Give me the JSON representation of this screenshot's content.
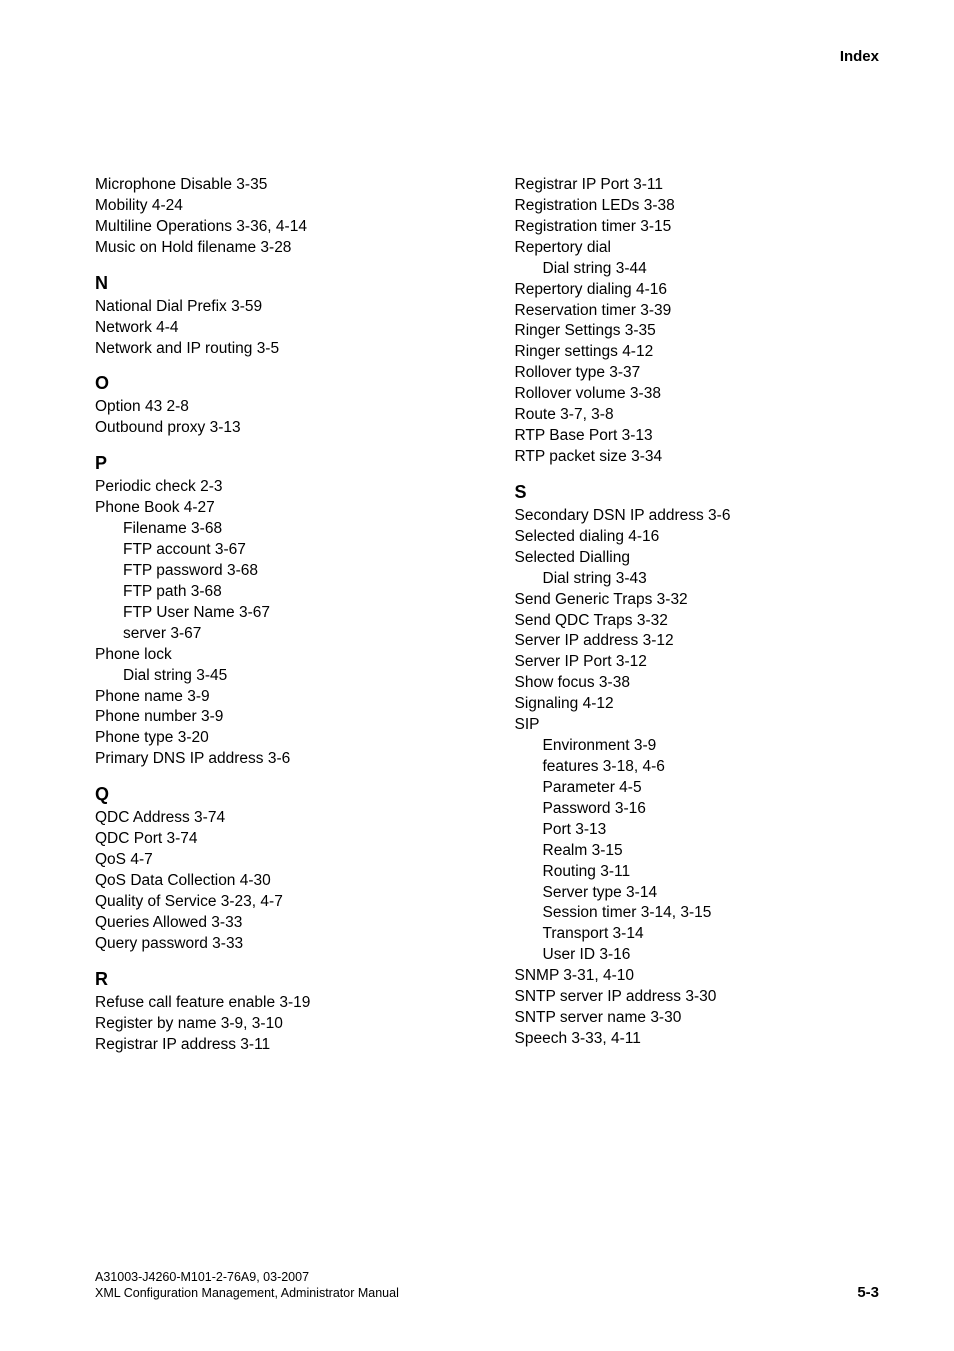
{
  "header": {
    "title": "Index"
  },
  "leftColumn": {
    "topEntries": [
      {
        "text": "Microphone Disable  3-35",
        "indent": false
      },
      {
        "text": "Mobility  4-24",
        "indent": false
      },
      {
        "text": "Multiline Operations  3-36, 4-14",
        "indent": false
      },
      {
        "text": "Music on Hold filename  3-28",
        "indent": false
      }
    ],
    "sections": [
      {
        "heading": "N",
        "entries": [
          {
            "text": "National Dial Prefix  3-59",
            "indent": false
          },
          {
            "text": "Network  4-4",
            "indent": false
          },
          {
            "text": "Network and IP routing  3-5",
            "indent": false
          }
        ]
      },
      {
        "heading": "O",
        "entries": [
          {
            "text": "Option 43  2-8",
            "indent": false
          },
          {
            "text": "Outbound proxy  3-13",
            "indent": false
          }
        ]
      },
      {
        "heading": "P",
        "entries": [
          {
            "text": "Periodic check  2-3",
            "indent": false
          },
          {
            "text": "Phone Book  4-27",
            "indent": false
          },
          {
            "text": "Filename  3-68",
            "indent": true
          },
          {
            "text": "FTP account  3-67",
            "indent": true
          },
          {
            "text": "FTP password  3-68",
            "indent": true
          },
          {
            "text": "FTP path  3-68",
            "indent": true
          },
          {
            "text": "FTP User Name  3-67",
            "indent": true
          },
          {
            "text": "server  3-67",
            "indent": true
          },
          {
            "text": "Phone lock",
            "indent": false
          },
          {
            "text": "Dial string  3-45",
            "indent": true
          },
          {
            "text": "Phone name  3-9",
            "indent": false
          },
          {
            "text": "Phone number  3-9",
            "indent": false
          },
          {
            "text": "Phone type  3-20",
            "indent": false
          },
          {
            "text": "Primary DNS IP address  3-6",
            "indent": false
          }
        ]
      },
      {
        "heading": "Q",
        "entries": [
          {
            "text": "QDC Address  3-74",
            "indent": false
          },
          {
            "text": "QDC Port  3-74",
            "indent": false
          },
          {
            "text": "QoS  4-7",
            "indent": false
          },
          {
            "text": "QoS Data Collection  4-30",
            "indent": false
          },
          {
            "text": "Quality of Service  3-23, 4-7",
            "indent": false
          },
          {
            "text": "Queries Allowed  3-33",
            "indent": false
          },
          {
            "text": "Query password  3-33",
            "indent": false
          }
        ]
      },
      {
        "heading": "R",
        "entries": [
          {
            "text": "Refuse call feature enable  3-19",
            "indent": false
          },
          {
            "text": "Register by name  3-9, 3-10",
            "indent": false
          },
          {
            "text": "Registrar IP address  3-11",
            "indent": false
          }
        ]
      }
    ]
  },
  "rightColumn": {
    "topEntries": [
      {
        "text": "Registrar IP Port  3-11",
        "indent": false
      },
      {
        "text": "Registration LEDs  3-38",
        "indent": false
      },
      {
        "text": "Registration timer  3-15",
        "indent": false
      },
      {
        "text": "Repertory dial",
        "indent": false
      },
      {
        "text": "Dial string  3-44",
        "indent": true
      },
      {
        "text": "Repertory dialing  4-16",
        "indent": false
      },
      {
        "text": "Reservation timer  3-39",
        "indent": false
      },
      {
        "text": "Ringer Settings  3-35",
        "indent": false
      },
      {
        "text": "Ringer settings  4-12",
        "indent": false
      },
      {
        "text": "Rollover type  3-37",
        "indent": false
      },
      {
        "text": "Rollover volume  3-38",
        "indent": false
      },
      {
        "text": "Route  3-7, 3-8",
        "indent": false
      },
      {
        "text": "RTP Base Port  3-13",
        "indent": false
      },
      {
        "text": "RTP packet size  3-34",
        "indent": false
      }
    ],
    "sections": [
      {
        "heading": "S",
        "entries": [
          {
            "text": "Secondary DSN IP address  3-6",
            "indent": false
          },
          {
            "text": "Selected dialing  4-16",
            "indent": false
          },
          {
            "text": "Selected Dialling",
            "indent": false
          },
          {
            "text": "Dial string  3-43",
            "indent": true
          },
          {
            "text": "Send Generic Traps  3-32",
            "indent": false
          },
          {
            "text": "Send QDC Traps  3-32",
            "indent": false
          },
          {
            "text": "Server IP address  3-12",
            "indent": false
          },
          {
            "text": "Server IP Port  3-12",
            "indent": false
          },
          {
            "text": "Show focus  3-38",
            "indent": false
          },
          {
            "text": "Signaling  4-12",
            "indent": false
          },
          {
            "text": "SIP",
            "indent": false
          },
          {
            "text": "Environment  3-9",
            "indent": true
          },
          {
            "text": "features  3-18, 4-6",
            "indent": true
          },
          {
            "text": "Parameter  4-5",
            "indent": true
          },
          {
            "text": "Password  3-16",
            "indent": true
          },
          {
            "text": "Port  3-13",
            "indent": true
          },
          {
            "text": "Realm  3-15",
            "indent": true
          },
          {
            "text": "Routing  3-11",
            "indent": true
          },
          {
            "text": "Server type  3-14",
            "indent": true
          },
          {
            "text": "Session timer  3-14, 3-15",
            "indent": true
          },
          {
            "text": "Transport  3-14",
            "indent": true
          },
          {
            "text": "User ID  3-16",
            "indent": true
          },
          {
            "text": "SNMP  3-31, 4-10",
            "indent": false
          },
          {
            "text": "SNTP server IP address  3-30",
            "indent": false
          },
          {
            "text": "SNTP server name  3-30",
            "indent": false
          },
          {
            "text": "Speech  3-33, 4-11",
            "indent": false
          }
        ]
      }
    ]
  },
  "footer": {
    "line1": "A31003-J4260-M101-2-76A9, 03-2007",
    "line2": "XML Configuration Management, Administrator Manual",
    "pageNumber": "5-3"
  }
}
